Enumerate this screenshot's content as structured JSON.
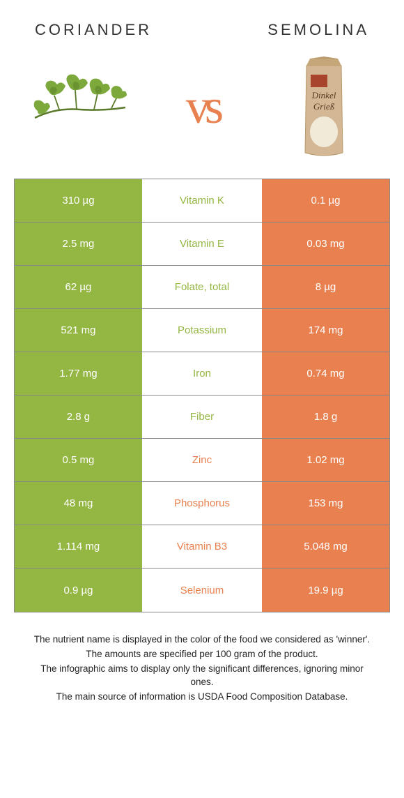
{
  "header": {
    "left": "CORIANDER",
    "right": "SEMOLINA"
  },
  "vs_label": "vs",
  "colors": {
    "left_bg": "#94b643",
    "right_bg": "#e8804f",
    "left_text": "#ffffff",
    "right_text": "#ffffff",
    "border": "#888888"
  },
  "semolina_label_top": "Dinkel",
  "semolina_label_bottom": "Grieß",
  "rows": [
    {
      "left": "310 µg",
      "mid": "Vitamin K",
      "right": "0.1 µg",
      "winner": "left"
    },
    {
      "left": "2.5 mg",
      "mid": "Vitamin E",
      "right": "0.03 mg",
      "winner": "left"
    },
    {
      "left": "62 µg",
      "mid": "Folate, total",
      "right": "8 µg",
      "winner": "left"
    },
    {
      "left": "521 mg",
      "mid": "Potassium",
      "right": "174 mg",
      "winner": "left"
    },
    {
      "left": "1.77 mg",
      "mid": "Iron",
      "right": "0.74 mg",
      "winner": "left"
    },
    {
      "left": "2.8 g",
      "mid": "Fiber",
      "right": "1.8 g",
      "winner": "left"
    },
    {
      "left": "0.5 mg",
      "mid": "Zinc",
      "right": "1.02 mg",
      "winner": "right"
    },
    {
      "left": "48 mg",
      "mid": "Phosphorus",
      "right": "153 mg",
      "winner": "right"
    },
    {
      "left": "1.114 mg",
      "mid": "Vitamin B3",
      "right": "5.048 mg",
      "winner": "right"
    },
    {
      "left": "0.9 µg",
      "mid": "Selenium",
      "right": "19.9 µg",
      "winner": "right"
    }
  ],
  "footer": {
    "line1": "The nutrient name is displayed in the color of the food we considered as 'winner'.",
    "line2": "The amounts are specified per 100 gram of the product.",
    "line3": "The infographic aims to display only the significant differences, ignoring minor ones.",
    "line4": "The main source of information is USDA Food Composition Database."
  }
}
